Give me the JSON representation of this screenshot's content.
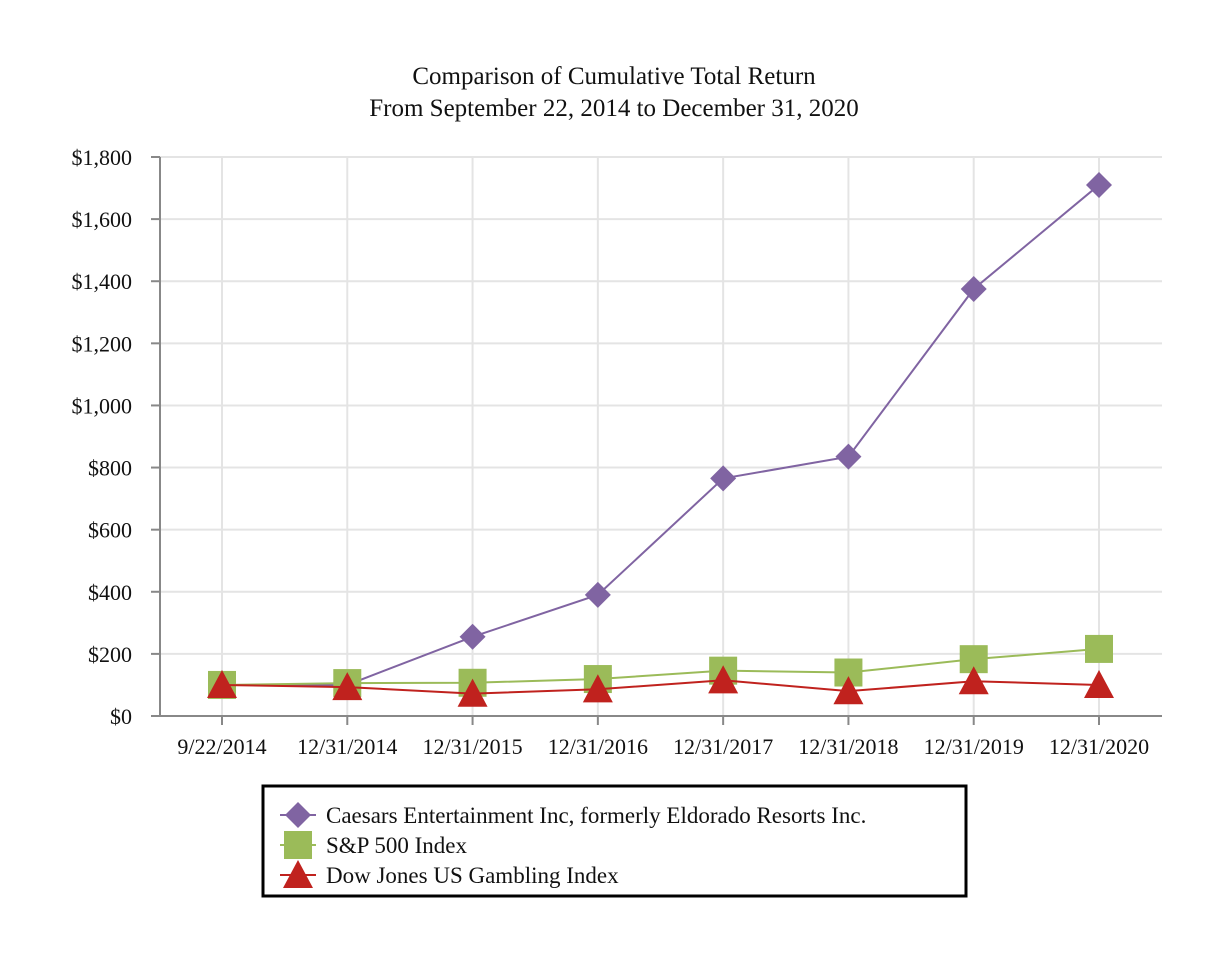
{
  "chart_data": {
    "type": "line",
    "title": "Comparison of Cumulative Total Return",
    "subtitle": "From September 22, 2014 to December 31, 2020",
    "xlabel": "",
    "ylabel": "",
    "categories": [
      "9/22/2014",
      "12/31/2014",
      "12/31/2015",
      "12/31/2016",
      "12/31/2017",
      "12/31/2018",
      "12/31/2019",
      "12/31/2020"
    ],
    "ylim": [
      0,
      1800
    ],
    "ytick_values": [
      0,
      200,
      400,
      600,
      800,
      1000,
      1200,
      1400,
      1600,
      1800
    ],
    "ytick_labels": [
      "$0",
      "$200",
      "$400",
      "$600",
      "$800",
      "$1,000",
      "$1,200",
      "$1,400",
      "$1,600",
      "$1,800"
    ],
    "grid": true,
    "legend_position": "bottom-center",
    "series": [
      {
        "name": "Caesars Entertainment Inc, formerly Eldorado Resorts Inc.",
        "marker": "diamond",
        "color": "#8064A2",
        "values": [
          100,
          100,
          255,
          390,
          765,
          835,
          1375,
          1710
        ]
      },
      {
        "name": "S&P 500 Index",
        "marker": "square",
        "color": "#9BBB59",
        "values": [
          100,
          106,
          107,
          119,
          146,
          140,
          183,
          216
        ]
      },
      {
        "name": "Dow Jones US Gambling Index",
        "marker": "triangle",
        "color": "#C0221E",
        "values": [
          100,
          93,
          72,
          86,
          115,
          80,
          112,
          100
        ]
      }
    ]
  }
}
